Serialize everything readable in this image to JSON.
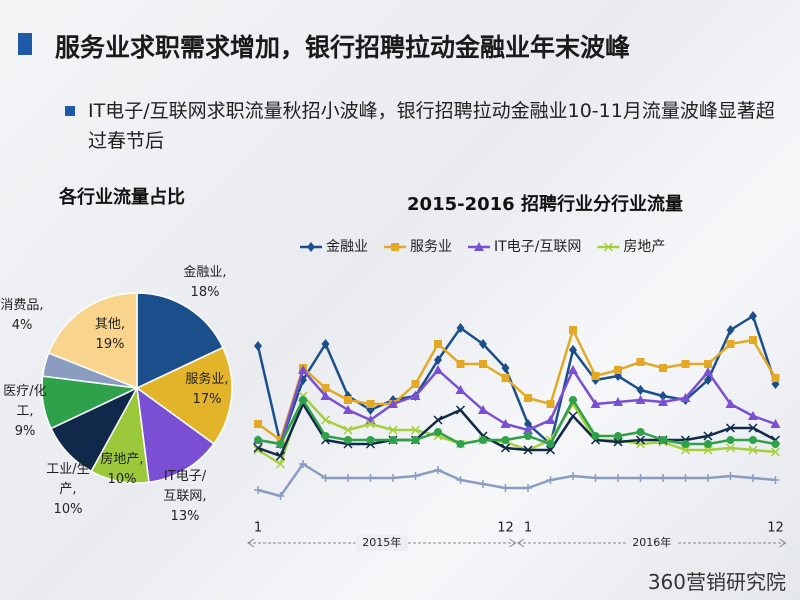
{
  "slide": {
    "title": "服务业求职需求增加，银行招聘拉动金融业年末波峰",
    "bullet": "IT电子/互联网求职流量秋招小波峰，银行招聘拉动金融业10-11月流量波峰显著超过春节后",
    "logo": "360营销研究院"
  },
  "chart_data": [
    {
      "type": "pie",
      "title": "各行业流量占比",
      "categories": [
        "金融业,",
        "服务业,",
        "IT电子/互联网,",
        "房地产,",
        "工业/生产,",
        "医疗/化工,",
        "消费品,",
        "其他,"
      ],
      "values": [
        18,
        17,
        13,
        10,
        10,
        9,
        4,
        19
      ],
      "value_labels": [
        "18%",
        "17%",
        "13%",
        "10%",
        "10%",
        "9%",
        "4%",
        "19%"
      ],
      "colors": [
        "#1b4f8c",
        "#e3b32a",
        "#7a4fd4",
        "#9bc83a",
        "#10284a",
        "#2fa14a",
        "#8a9cc0",
        "#f8d48c"
      ]
    },
    {
      "type": "line",
      "title": "2015-2016 招聘行业分行业流量",
      "categories": [
        "1",
        null,
        null,
        null,
        null,
        null,
        null,
        null,
        null,
        null,
        null,
        "12",
        "1",
        null,
        null,
        null,
        null,
        null,
        null,
        null,
        null,
        null,
        null,
        "12"
      ],
      "group_labels": [
        "2015年",
        "2016年"
      ],
      "ylim": [
        0,
        120
      ],
      "series": [
        {
          "name": "金融业",
          "color": "#1b4f8c",
          "marker": "diamond",
          "values": [
            87,
            38,
            70,
            88,
            62,
            55,
            60,
            62,
            80,
            96,
            88,
            76,
            48,
            38,
            85,
            70,
            72,
            65,
            62,
            60,
            70,
            95,
            102,
            68
          ]
        },
        {
          "name": "服务业",
          "color": "#e3a925",
          "marker": "square",
          "values": [
            48,
            40,
            76,
            66,
            60,
            58,
            58,
            68,
            88,
            78,
            78,
            71,
            61,
            58,
            95,
            72,
            75,
            79,
            76,
            78,
            78,
            88,
            90,
            71
          ]
        },
        {
          "name": "IT电子/互联网",
          "color": "#7a4fd4",
          "marker": "triangle",
          "values": [
            40,
            38,
            75,
            62,
            55,
            50,
            58,
            62,
            75,
            65,
            55,
            48,
            45,
            50,
            75,
            58,
            59,
            60,
            59,
            61,
            74,
            58,
            52,
            48
          ]
        },
        {
          "name": "房地产",
          "color": "#a6cf3c",
          "marker": "x",
          "values": [
            35,
            28,
            62,
            50,
            45,
            48,
            45,
            45,
            42,
            38,
            40,
            39,
            35,
            40,
            58,
            40,
            40,
            38,
            39,
            35,
            35,
            36,
            35,
            34
          ]
        },
        {
          "color": "#10284a",
          "marker": "x",
          "values": [
            36,
            32,
            58,
            40,
            38,
            38,
            40,
            40,
            50,
            55,
            42,
            36,
            35,
            35,
            52,
            40,
            39,
            40,
            40,
            40,
            42,
            46,
            46,
            40
          ]
        },
        {
          "color": "#2fa14a",
          "marker": "circle",
          "values": [
            40,
            38,
            60,
            42,
            40,
            40,
            40,
            40,
            44,
            38,
            40,
            40,
            42,
            38,
            60,
            42,
            42,
            44,
            40,
            38,
            38,
            40,
            40,
            38
          ]
        },
        {
          "color": "#8a9cc0",
          "marker": "plus",
          "values": [
            15,
            12,
            28,
            21,
            21,
            21,
            21,
            22,
            25,
            20,
            18,
            16,
            16,
            20,
            22,
            21,
            21,
            21,
            21,
            21,
            21,
            22,
            21,
            20
          ]
        }
      ]
    }
  ]
}
